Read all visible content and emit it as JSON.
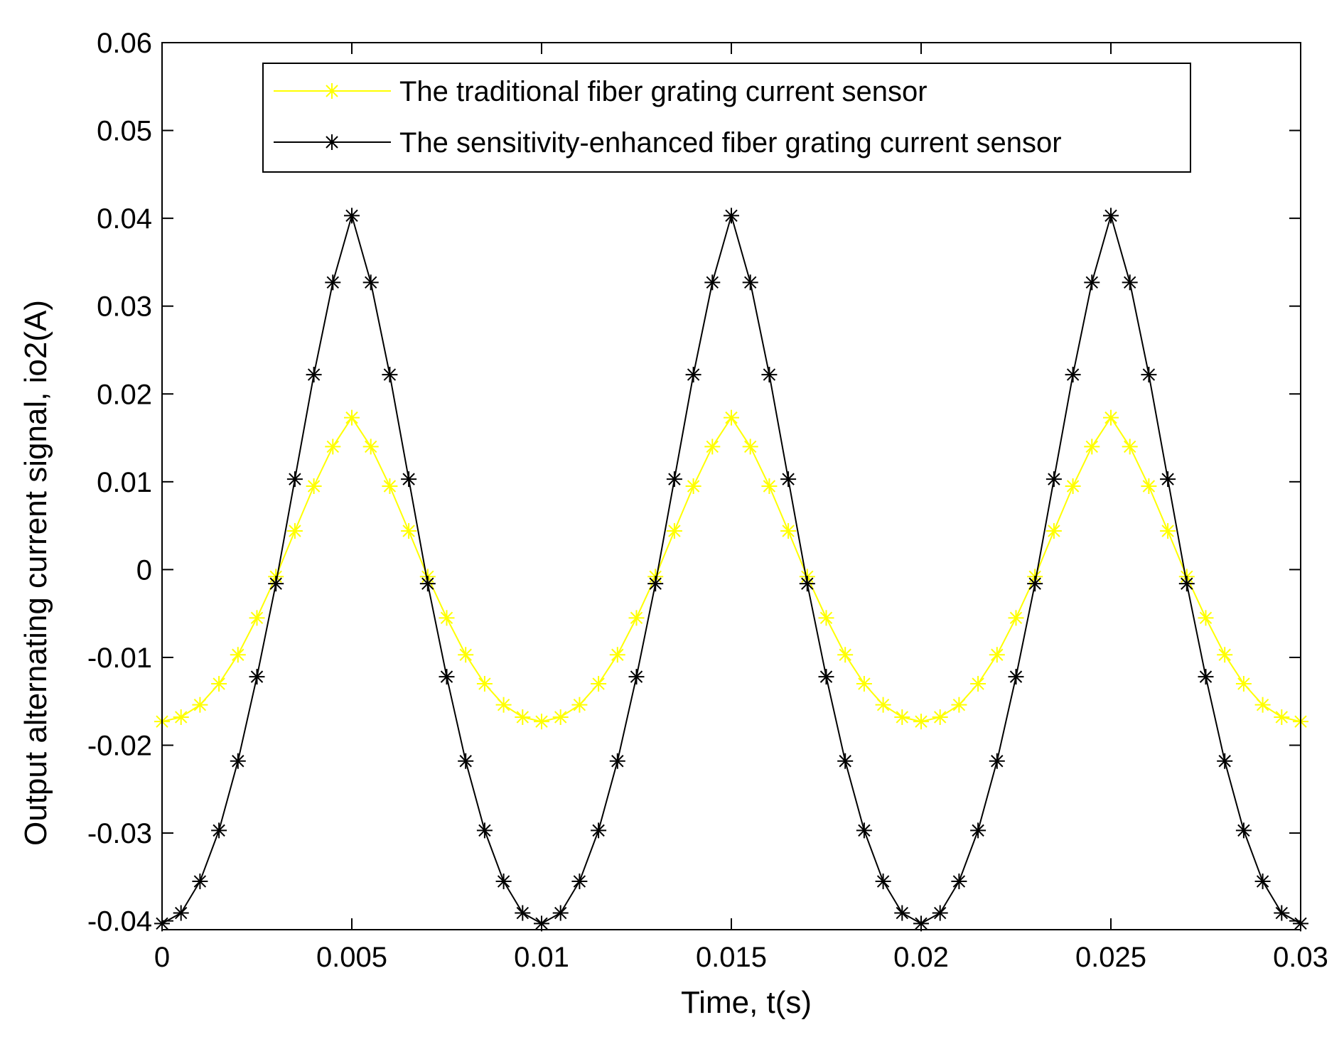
{
  "chart_data": {
    "type": "line",
    "title": "",
    "xlabel": "Time, t(s)",
    "ylabel": "Output alternating current signal, io2(A)",
    "xlim": [
      0,
      0.03
    ],
    "ylim": [
      -0.041,
      0.06
    ],
    "x_ticks": [
      0,
      0.005,
      0.01,
      0.015,
      0.02,
      0.025,
      0.03
    ],
    "x_tick_labels": [
      "0",
      "0.005",
      "0.01",
      "0.015",
      "0.02",
      "0.025",
      "0.03"
    ],
    "y_ticks": [
      -0.04,
      -0.03,
      -0.02,
      -0.01,
      0,
      0.01,
      0.02,
      0.03,
      0.04,
      0.05,
      0.06
    ],
    "y_tick_labels": [
      "-0.04",
      "-0.03",
      "-0.02",
      "-0.01",
      "0",
      "0.01",
      "0.02",
      "0.03",
      "0.04",
      "0.05",
      "0.06"
    ],
    "grid": false,
    "legend_position": "top",
    "x": [
      0.0,
      0.0005,
      0.001,
      0.0015,
      0.002,
      0.0025,
      0.003,
      0.0035,
      0.004,
      0.0045,
      0.005,
      0.0055,
      0.006,
      0.0065,
      0.007,
      0.0075,
      0.008,
      0.0085,
      0.009,
      0.0095,
      0.01,
      0.0105,
      0.011,
      0.0115,
      0.012,
      0.0125,
      0.013,
      0.0135,
      0.014,
      0.0145,
      0.015,
      0.0155,
      0.016,
      0.0165,
      0.017,
      0.0175,
      0.018,
      0.0185,
      0.019,
      0.0195,
      0.02,
      0.0205,
      0.021,
      0.0215,
      0.022,
      0.0225,
      0.023,
      0.0235,
      0.024,
      0.0245,
      0.025,
      0.0255,
      0.026,
      0.0265,
      0.027,
      0.0275,
      0.028,
      0.0285,
      0.029,
      0.0295,
      0.03
    ],
    "series": [
      {
        "name": "The traditional fiber grating current sensor",
        "color": "#ffff00",
        "marker": "asterisk",
        "values": [
          -0.0173,
          -0.0168,
          -0.0154,
          -0.013,
          -0.0097,
          -0.0055,
          -0.0008,
          0.0044,
          0.0095,
          0.014,
          0.0173,
          0.014,
          0.0095,
          0.0044,
          -0.0008,
          -0.0055,
          -0.0097,
          -0.013,
          -0.0154,
          -0.0168,
          -0.0173,
          -0.0168,
          -0.0154,
          -0.013,
          -0.0097,
          -0.0055,
          -0.0008,
          0.0044,
          0.0095,
          0.014,
          0.0173,
          0.014,
          0.0095,
          0.0044,
          -0.0008,
          -0.0055,
          -0.0097,
          -0.013,
          -0.0154,
          -0.0168,
          -0.0173,
          -0.0168,
          -0.0154,
          -0.013,
          -0.0097,
          -0.0055,
          -0.0008,
          0.0044,
          0.0095,
          0.014,
          0.0173,
          0.014,
          0.0095,
          0.0044,
          -0.0008,
          -0.0055,
          -0.0097,
          -0.013,
          -0.0154,
          -0.0168,
          -0.0173
        ]
      },
      {
        "name": "The sensitivity-enhanced fiber grating current sensor",
        "color": "#000000",
        "marker": "asterisk",
        "values": [
          -0.0403,
          -0.0391,
          -0.0355,
          -0.0297,
          -0.0218,
          -0.0122,
          -0.0016,
          0.0103,
          0.0222,
          0.0327,
          0.0403,
          0.0327,
          0.0222,
          0.0103,
          -0.0016,
          -0.0122,
          -0.0218,
          -0.0297,
          -0.0355,
          -0.0391,
          -0.0403,
          -0.0391,
          -0.0355,
          -0.0297,
          -0.0218,
          -0.0122,
          -0.0016,
          0.0103,
          0.0222,
          0.0327,
          0.0403,
          0.0327,
          0.0222,
          0.0103,
          -0.0016,
          -0.0122,
          -0.0218,
          -0.0297,
          -0.0355,
          -0.0391,
          -0.0403,
          -0.0391,
          -0.0355,
          -0.0297,
          -0.0218,
          -0.0122,
          -0.0016,
          0.0103,
          0.0222,
          0.0327,
          0.0403,
          0.0327,
          0.0222,
          0.0103,
          -0.0016,
          -0.0122,
          -0.0218,
          -0.0297,
          -0.0355,
          -0.0391,
          -0.0403
        ]
      }
    ]
  }
}
